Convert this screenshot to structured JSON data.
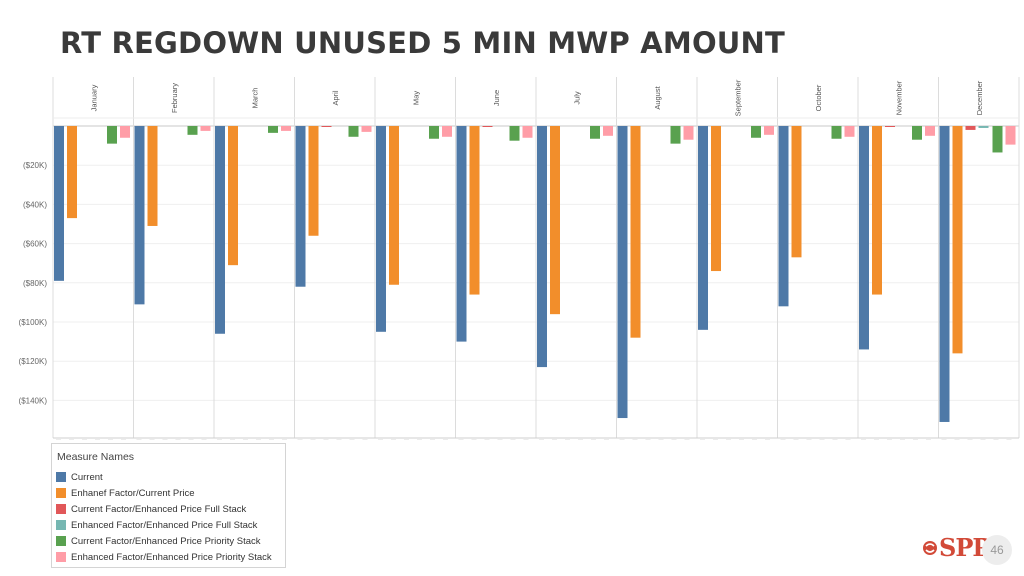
{
  "title": "RT REGDOWN UNUSED 5 MIN MWP AMOUNT",
  "chart_data": {
    "type": "bar",
    "title": "RT REGDOWN UNUSED 5 MIN MWP AMOUNT",
    "xlabel": "",
    "ylabel": "",
    "ylim": [
      -160000,
      0
    ],
    "yticks": [
      0,
      -20000,
      -40000,
      -60000,
      -80000,
      -100000,
      -120000,
      -140000
    ],
    "ytick_labels": [
      "",
      "($20K)",
      "($40K)",
      "($60K)",
      "($80K)",
      "($100K)",
      "($120K)",
      "($140K)"
    ],
    "categories": [
      "January",
      "February",
      "March",
      "April",
      "May",
      "June",
      "July",
      "August",
      "September",
      "October",
      "November",
      "December"
    ],
    "legend_title": "Measure Names",
    "series": [
      {
        "name": "Current",
        "color": "#4e79a7",
        "values": [
          -79000,
          -91000,
          -106000,
          -82000,
          -105000,
          -110000,
          -123000,
          -149000,
          -104000,
          -92000,
          -114000,
          -151000
        ]
      },
      {
        "name": "Enhanef Factor/Current Price",
        "color": "#f28e2b",
        "values": [
          -47000,
          -51000,
          -71000,
          -56000,
          -81000,
          -86000,
          -96000,
          -108000,
          -74000,
          -67000,
          -86000,
          -116000
        ]
      },
      {
        "name": "Current Factor/Enhanced Price Full Stack",
        "color": "#e15759",
        "values": [
          0,
          0,
          0,
          -500,
          0,
          -500,
          0,
          0,
          0,
          0,
          -500,
          -2000
        ]
      },
      {
        "name": "Enhanced Factor/Enhanced Price Full Stack",
        "color": "#76b7b2",
        "values": [
          0,
          0,
          0,
          0,
          0,
          0,
          0,
          0,
          0,
          0,
          0,
          -1000
        ]
      },
      {
        "name": "Current Factor/Enhanced Price Priority Stack",
        "color": "#59a14f",
        "values": [
          -9000,
          -4500,
          -3500,
          -5500,
          -6500,
          -7500,
          -6500,
          -9000,
          -6000,
          -6500,
          -7000,
          -13500
        ]
      },
      {
        "name": "Enhanced Factor/Enhanced Price Priority Stack",
        "color": "#ff9da7",
        "values": [
          -6000,
          -2500,
          -2500,
          -3000,
          -5500,
          -6000,
          -5000,
          -7000,
          -4500,
          -5500,
          -5000,
          -9500
        ]
      }
    ],
    "legend_position": "bottom-left",
    "grid": true
  },
  "logo_text": "SPP",
  "page_number": "46"
}
